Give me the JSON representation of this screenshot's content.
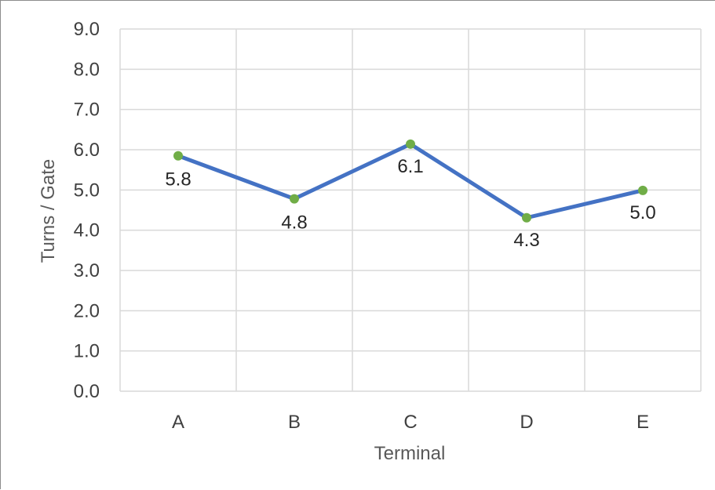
{
  "chart_data": {
    "type": "line",
    "categories": [
      "A",
      "B",
      "C",
      "D",
      "E"
    ],
    "series": [
      {
        "values": [
          5.85,
          4.78,
          6.14,
          4.31,
          4.99
        ],
        "labels": [
          "5.8",
          "4.8",
          "6.1",
          "4.3",
          "5.0"
        ]
      }
    ],
    "xlabel": "Terminal",
    "ylabel": "Turns / Gate",
    "ylim": [
      0,
      9
    ],
    "yticks": [
      "0.0",
      "1.0",
      "2.0",
      "3.0",
      "4.0",
      "5.0",
      "6.0",
      "7.0",
      "8.0",
      "9.0"
    ],
    "grid": true,
    "legend": "none",
    "colors": {
      "line": "#4472C4",
      "marker": "#70AD47",
      "grid": "#D9D9D9"
    }
  }
}
